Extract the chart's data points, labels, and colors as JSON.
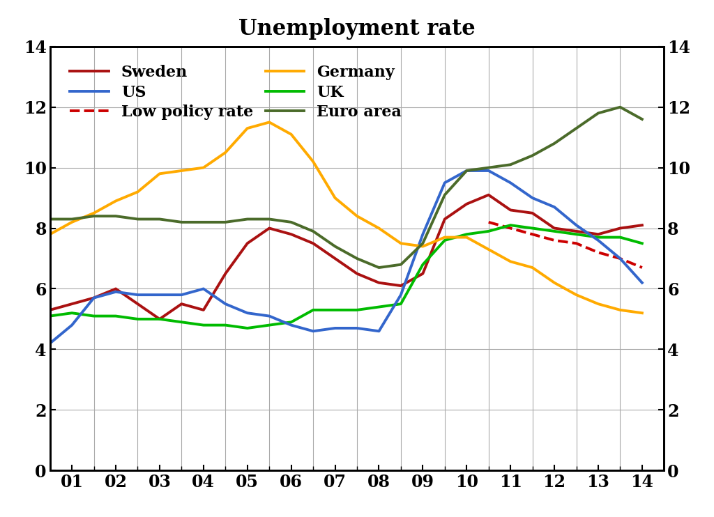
{
  "title": "Unemployment rate",
  "title_fontsize": 22,
  "xlim": [
    0,
    14
  ],
  "ylim": [
    0,
    14
  ],
  "xtick_labels": [
    "01",
    "02",
    "03",
    "04",
    "05",
    "06",
    "07",
    "08",
    "09",
    "10",
    "11",
    "12",
    "13",
    "14"
  ],
  "xtick_positions": [
    0.5,
    1.5,
    2.5,
    3.5,
    4.5,
    5.5,
    6.5,
    7.5,
    8.5,
    9.5,
    10.5,
    11.5,
    12.5,
    13.5
  ],
  "ytick_positions": [
    0,
    2,
    4,
    6,
    8,
    10,
    12,
    14
  ],
  "tick_fontsize": 17,
  "legend_fontsize": 16,
  "series": {
    "Sweden": {
      "color": "#AA1111",
      "linestyle": "solid",
      "linewidth": 2.8,
      "x": [
        0.0,
        0.5,
        1.0,
        1.5,
        2.0,
        2.5,
        3.0,
        3.5,
        4.0,
        4.5,
        5.0,
        5.5,
        6.0,
        6.5,
        7.0,
        7.5,
        8.0,
        8.5,
        9.0,
        9.5,
        10.0,
        10.5,
        11.0,
        11.5,
        12.0,
        12.5,
        13.0,
        13.5
      ],
      "y": [
        5.3,
        5.5,
        5.7,
        6.0,
        5.5,
        5.0,
        5.5,
        5.3,
        6.5,
        7.5,
        8.0,
        7.8,
        7.5,
        7.0,
        6.5,
        6.2,
        6.1,
        6.5,
        8.3,
        8.8,
        9.1,
        8.6,
        8.5,
        8.0,
        7.9,
        7.8,
        8.0,
        8.1
      ]
    },
    "Low_policy_rate": {
      "color": "#CC0000",
      "linestyle": "dashed",
      "linewidth": 2.8,
      "x": [
        10.0,
        10.5,
        11.0,
        11.5,
        12.0,
        12.5,
        13.0,
        13.5
      ],
      "y": [
        8.2,
        8.0,
        7.8,
        7.6,
        7.5,
        7.2,
        7.0,
        6.7
      ]
    },
    "UK": {
      "color": "#00BB00",
      "linestyle": "solid",
      "linewidth": 2.8,
      "x": [
        0.0,
        0.5,
        1.0,
        1.5,
        2.0,
        2.5,
        3.0,
        3.5,
        4.0,
        4.5,
        5.0,
        5.5,
        6.0,
        6.5,
        7.0,
        7.5,
        8.0,
        8.5,
        9.0,
        9.5,
        10.0,
        10.5,
        11.0,
        11.5,
        12.0,
        12.5,
        13.0,
        13.5
      ],
      "y": [
        5.1,
        5.2,
        5.1,
        5.1,
        5.0,
        5.0,
        4.9,
        4.8,
        4.8,
        4.7,
        4.8,
        4.9,
        5.3,
        5.3,
        5.3,
        5.4,
        5.5,
        6.8,
        7.6,
        7.8,
        7.9,
        8.1,
        8.0,
        7.9,
        7.8,
        7.7,
        7.7,
        7.5
      ]
    },
    "US": {
      "color": "#3366CC",
      "linestyle": "solid",
      "linewidth": 2.8,
      "x": [
        0.0,
        0.5,
        1.0,
        1.5,
        2.0,
        2.5,
        3.0,
        3.5,
        4.0,
        4.5,
        5.0,
        5.5,
        6.0,
        6.5,
        7.0,
        7.5,
        8.0,
        8.5,
        9.0,
        9.5,
        10.0,
        10.5,
        11.0,
        11.5,
        12.0,
        12.5,
        13.0,
        13.5
      ],
      "y": [
        4.2,
        4.8,
        5.7,
        5.9,
        5.8,
        5.8,
        5.8,
        6.0,
        5.5,
        5.2,
        5.1,
        4.8,
        4.6,
        4.7,
        4.7,
        4.6,
        5.8,
        7.8,
        9.5,
        9.9,
        9.9,
        9.5,
        9.0,
        8.7,
        8.1,
        7.6,
        7.0,
        6.2
      ]
    },
    "Germany": {
      "color": "#FFAA00",
      "linestyle": "solid",
      "linewidth": 2.8,
      "x": [
        0.0,
        0.5,
        1.0,
        1.5,
        2.0,
        2.5,
        3.0,
        3.5,
        4.0,
        4.5,
        5.0,
        5.5,
        6.0,
        6.5,
        7.0,
        7.5,
        8.0,
        8.5,
        9.0,
        9.5,
        10.0,
        10.5,
        11.0,
        11.5,
        12.0,
        12.5,
        13.0,
        13.5
      ],
      "y": [
        7.8,
        8.2,
        8.5,
        8.9,
        9.2,
        9.8,
        9.9,
        10.0,
        10.5,
        11.3,
        11.5,
        11.1,
        10.2,
        9.0,
        8.4,
        8.0,
        7.5,
        7.4,
        7.7,
        7.7,
        7.3,
        6.9,
        6.7,
        6.2,
        5.8,
        5.5,
        5.3,
        5.2
      ]
    },
    "Euro_area": {
      "color": "#4B6B2A",
      "linestyle": "solid",
      "linewidth": 2.8,
      "x": [
        0.0,
        0.5,
        1.0,
        1.5,
        2.0,
        2.5,
        3.0,
        3.5,
        4.0,
        4.5,
        5.0,
        5.5,
        6.0,
        6.5,
        7.0,
        7.5,
        8.0,
        8.5,
        9.0,
        9.5,
        10.0,
        10.5,
        11.0,
        11.5,
        12.0,
        12.5,
        13.0,
        13.5
      ],
      "y": [
        8.3,
        8.3,
        8.4,
        8.4,
        8.3,
        8.3,
        8.2,
        8.2,
        8.2,
        8.3,
        8.3,
        8.2,
        7.9,
        7.4,
        7.0,
        6.7,
        6.8,
        7.5,
        9.1,
        9.9,
        10.0,
        10.1,
        10.4,
        10.8,
        11.3,
        11.8,
        12.0,
        11.6
      ]
    }
  },
  "legend_order": [
    "Sweden",
    "US",
    "Low_policy_rate",
    "Germany",
    "UK",
    "Euro_area"
  ],
  "legend_labels": {
    "Sweden": "Sweden",
    "Low_policy_rate": "Low policy rate",
    "UK": "UK",
    "US": "US",
    "Germany": "Germany",
    "Euro_area": "Euro area"
  }
}
